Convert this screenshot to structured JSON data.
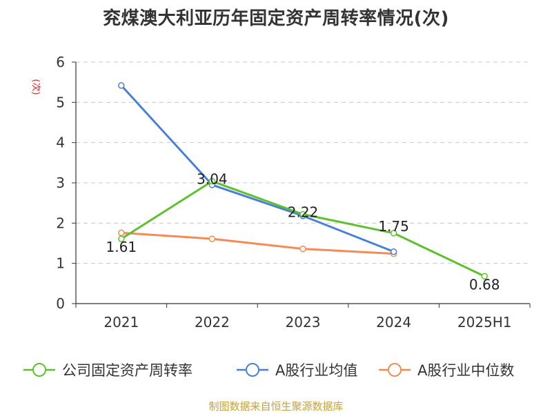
{
  "title": "兖煤澳大利亚历年固定资产周转率情况(次)",
  "source": "制图数据来自恒生聚源数据库",
  "colors": {
    "company": "#5cc12b",
    "industry_avg": "#4a7fd9",
    "industry_median": "#f58a55"
  },
  "chart_data": {
    "type": "line",
    "title": "兖煤澳大利亚历年固定资产周转率情况(次)",
    "ylabel": "(次)",
    "xlabel": "",
    "ylim": [
      0,
      6
    ],
    "yticks": [
      "0",
      "1",
      "2",
      "3",
      "4",
      "5",
      "6"
    ],
    "grid": true,
    "legend_position": "bottom",
    "categories": [
      "2021",
      "2022",
      "2023",
      "2024",
      "2025H1"
    ],
    "series": [
      {
        "name": "公司固定资产周转率",
        "values": [
          1.61,
          3.04,
          2.22,
          1.75,
          0.68
        ],
        "data_labels": [
          "1.61",
          "3.04",
          "2.22",
          "1.75",
          "0.68"
        ],
        "color": "#5cc12b"
      },
      {
        "name": "A股行业均值",
        "values": [
          5.42,
          2.95,
          2.18,
          1.29,
          null
        ],
        "color": "#4a7fd9"
      },
      {
        "name": "A股行业中位数",
        "values": [
          1.76,
          1.61,
          1.36,
          1.24,
          null
        ],
        "color": "#f58a55"
      }
    ]
  }
}
